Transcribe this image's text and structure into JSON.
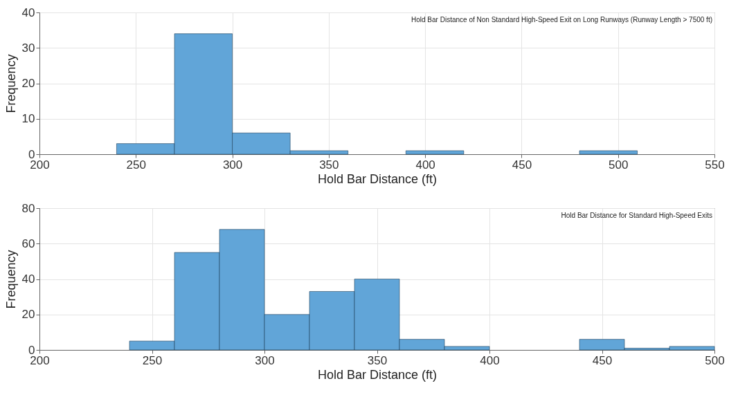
{
  "chart_data": [
    {
      "type": "histogram",
      "xlabel": "Hold Bar Distance (ft)",
      "ylabel": "Frequency",
      "annotations": [
        "Hold Bar Distance of Non Standard High-Speed Exit on Long Runways (Runway Length > 7500 ft)"
      ],
      "bins": [
        240,
        270,
        300,
        330,
        360,
        390,
        420,
        450,
        480,
        510
      ],
      "values": [
        3,
        34,
        6,
        1,
        0,
        1,
        0,
        0,
        1
      ],
      "color": "#61a5d8",
      "xlim": [
        200,
        550
      ],
      "ylim": [
        0,
        40
      ],
      "xticks": [
        200,
        250,
        300,
        350,
        400,
        450,
        500,
        550
      ],
      "yticks": [
        0,
        10,
        20,
        30,
        40
      ],
      "grid": true
    },
    {
      "type": "histogram",
      "xlabel": "Hold Bar Distance (ft)",
      "ylabel": "Frequency",
      "annotations": [
        "Hold Bar Distance for Standard High-Speed Exits"
      ],
      "bins": [
        240,
        260,
        280,
        300,
        320,
        340,
        360,
        380,
        400,
        420,
        440,
        460,
        480,
        500
      ],
      "values": [
        5,
        55,
        68,
        20,
        33,
        40,
        6,
        2,
        0,
        0,
        6,
        1,
        2
      ],
      "color": "#61a5d8",
      "xlim": [
        200,
        500
      ],
      "ylim": [
        0,
        80
      ],
      "xticks": [
        200,
        250,
        300,
        350,
        400,
        450,
        500
      ],
      "yticks": [
        0,
        20,
        40,
        60,
        80
      ],
      "grid": true
    }
  ]
}
